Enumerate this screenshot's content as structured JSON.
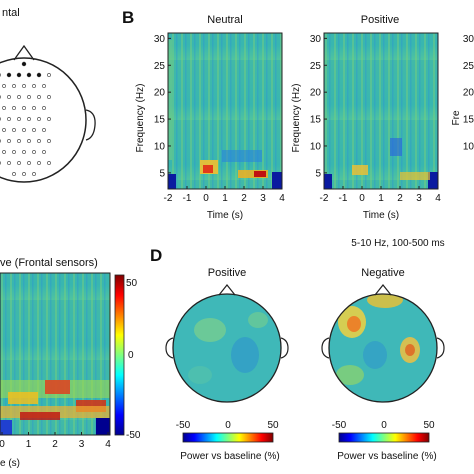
{
  "panels": {
    "a": {
      "title_fragment": "ntal"
    },
    "b": {
      "letter": "B",
      "plots": [
        {
          "title": "Neutral",
          "ylabel": "Frequency (Hz)",
          "xlabel": "Time (s)"
        },
        {
          "title": "Positive",
          "ylabel": "Frequency (Hz)",
          "xlabel": "Time (s)"
        }
      ],
      "yticks": [
        "30",
        "25",
        "20",
        "15",
        "10",
        "5"
      ],
      "xticks": [
        "-2",
        "-1",
        "0",
        "1",
        "2",
        "3",
        "4"
      ],
      "partial_ticks": [
        "30",
        "25",
        "20",
        "15",
        "10"
      ],
      "partial_ylabel_fragment": "Fre"
    },
    "c": {
      "title_fragment": "ve (Frontal sensors)",
      "xticks": [
        "0",
        "1",
        "2",
        "3",
        "4"
      ],
      "xlabel_fragment": "e (s)",
      "colorbar_ticks": [
        "50",
        "0",
        "-50"
      ]
    },
    "d": {
      "letter": "D",
      "condition": "5-10 Hz, 100-500 ms",
      "heads": [
        {
          "title": "Positive"
        },
        {
          "title": "Negative"
        }
      ],
      "colorbars": [
        {
          "ticks": [
            "-50",
            "0",
            "50"
          ],
          "label": "Power vs baseline (%)"
        },
        {
          "ticks": [
            "-50",
            "0",
            "50"
          ],
          "label": "Power vs baseline (%)"
        }
      ]
    }
  },
  "colors": {
    "jet_low": "#00008f",
    "jet_mid": "#20c0c0",
    "jet_high": "#800000",
    "background_field": "#39b7a6"
  }
}
